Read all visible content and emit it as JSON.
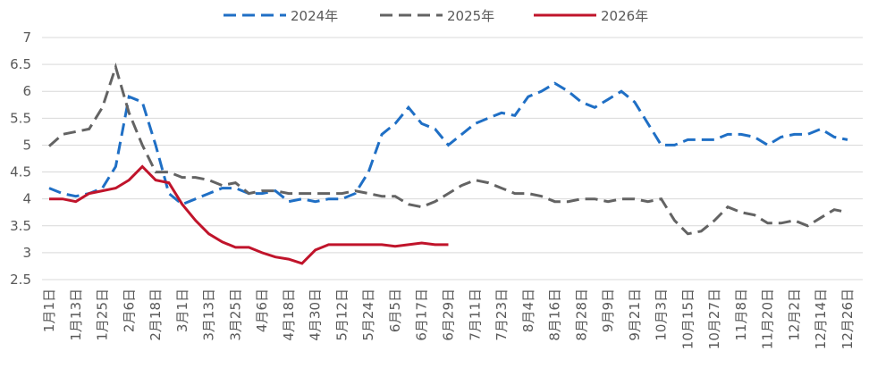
{
  "chart_data": {
    "type": "line",
    "categories": [
      "1月1日",
      null,
      "1月13日",
      null,
      "1月25日",
      null,
      "2月6日",
      null,
      "2月18日",
      null,
      "3月1日",
      null,
      "3月13日",
      null,
      "3月25日",
      null,
      "4月6日",
      null,
      "4月18日",
      null,
      "4月30日",
      null,
      "5月12日",
      null,
      "5月24日",
      null,
      "6月5日",
      null,
      "6月17日",
      null,
      "6月29日",
      null,
      "7月11日",
      null,
      "7月23日",
      null,
      "8月4日",
      null,
      "8月16日",
      null,
      "8月28日",
      null,
      "9月9日",
      null,
      "9月21日",
      null,
      "10月3日",
      null,
      "10月15日",
      null,
      "10月27日",
      null,
      "11月8日",
      null,
      "11月20日",
      null,
      "12月2日",
      null,
      "12月14日",
      null,
      "12月26日"
    ],
    "series": [
      {
        "name": "2024年",
        "color": "#1f6fc5",
        "dashed": true,
        "values": [
          4.2,
          4.1,
          4.05,
          4.1,
          4.2,
          4.6,
          5.9,
          5.8,
          5.0,
          4.1,
          3.9,
          4.0,
          4.1,
          4.2,
          4.2,
          4.1,
          4.1,
          4.15,
          3.95,
          4.0,
          3.95,
          4.0,
          4.0,
          4.1,
          4.5,
          5.2,
          5.4,
          5.7,
          5.4,
          5.3,
          5.0,
          5.2,
          5.4,
          5.5,
          5.6,
          5.55,
          5.9,
          6.0,
          6.15,
          6.0,
          5.8,
          5.7,
          5.85,
          6.0,
          5.8,
          5.4,
          5.0,
          5.0,
          5.1,
          5.1,
          5.1,
          5.2,
          5.2,
          5.15,
          5.0,
          5.15,
          5.2,
          5.2,
          5.3,
          5.15,
          5.1
        ]
      },
      {
        "name": "2025年",
        "color": "#636363",
        "dashed": true,
        "values": [
          4.98,
          5.2,
          5.25,
          5.3,
          5.7,
          6.45,
          5.6,
          5.0,
          4.5,
          4.5,
          4.4,
          4.4,
          4.35,
          4.25,
          4.3,
          4.1,
          4.15,
          4.15,
          4.1,
          4.1,
          4.1,
          4.1,
          4.1,
          4.15,
          4.1,
          4.05,
          4.05,
          3.9,
          3.85,
          3.95,
          4.1,
          4.25,
          4.35,
          4.3,
          4.2,
          4.1,
          4.1,
          4.05,
          3.95,
          3.95,
          4.0,
          4.0,
          3.95,
          4.0,
          4.0,
          3.95,
          4.0,
          3.6,
          3.35,
          3.4,
          3.6,
          3.85,
          3.75,
          3.7,
          3.55,
          3.55,
          3.6,
          3.5,
          3.65,
          3.8,
          3.75
        ]
      },
      {
        "name": "2026年",
        "color": "#c0142b",
        "dashed": false,
        "values": [
          4.0,
          4.0,
          3.95,
          4.1,
          4.15,
          4.2,
          4.35,
          4.6,
          4.35,
          4.3,
          3.9,
          3.6,
          3.35,
          3.2,
          3.1,
          3.1,
          3.0,
          2.92,
          2.88,
          2.8,
          3.05,
          3.15,
          3.15,
          3.15,
          3.15,
          3.15,
          3.12,
          3.15,
          3.18,
          3.15,
          3.15,
          null,
          null,
          null,
          null,
          null,
          null,
          null,
          null,
          null,
          null,
          null,
          null,
          null,
          null,
          null,
          null,
          null,
          null,
          null,
          null,
          null,
          null,
          null,
          null,
          null,
          null,
          null,
          null,
          null,
          null
        ]
      }
    ],
    "ylim": [
      2.5,
      7
    ],
    "yticks": [
      2.5,
      3,
      3.5,
      4,
      4.5,
      5,
      5.5,
      6,
      6.5,
      7
    ],
    "grid": true,
    "legend": "top"
  }
}
